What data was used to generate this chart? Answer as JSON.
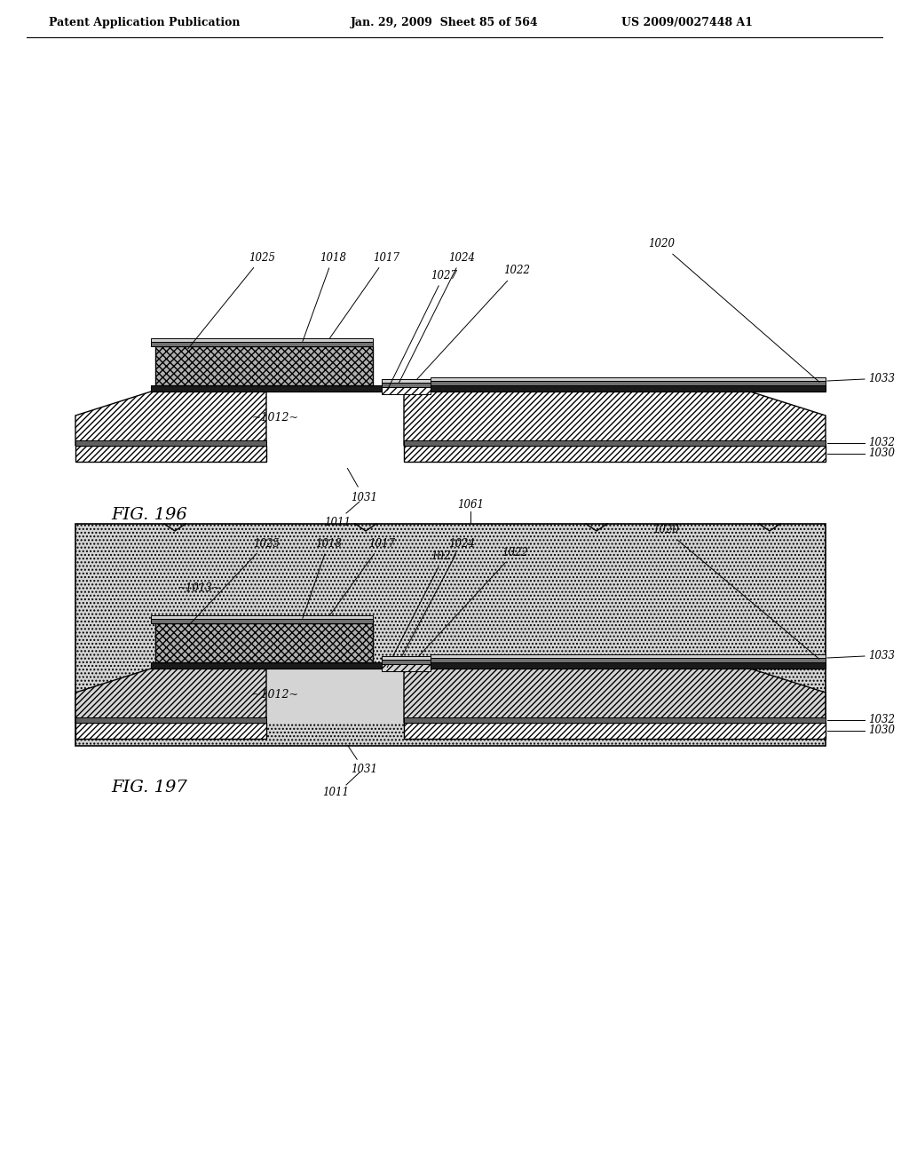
{
  "bg_color": "#ffffff",
  "header_left": "Patent Application Publication",
  "header_center": "Jan. 29, 2009  Sheet 85 of 564",
  "header_right": "US 2009/0027448 A1",
  "fig196_label": "FIG. 196",
  "fig197_label": "FIG. 197"
}
